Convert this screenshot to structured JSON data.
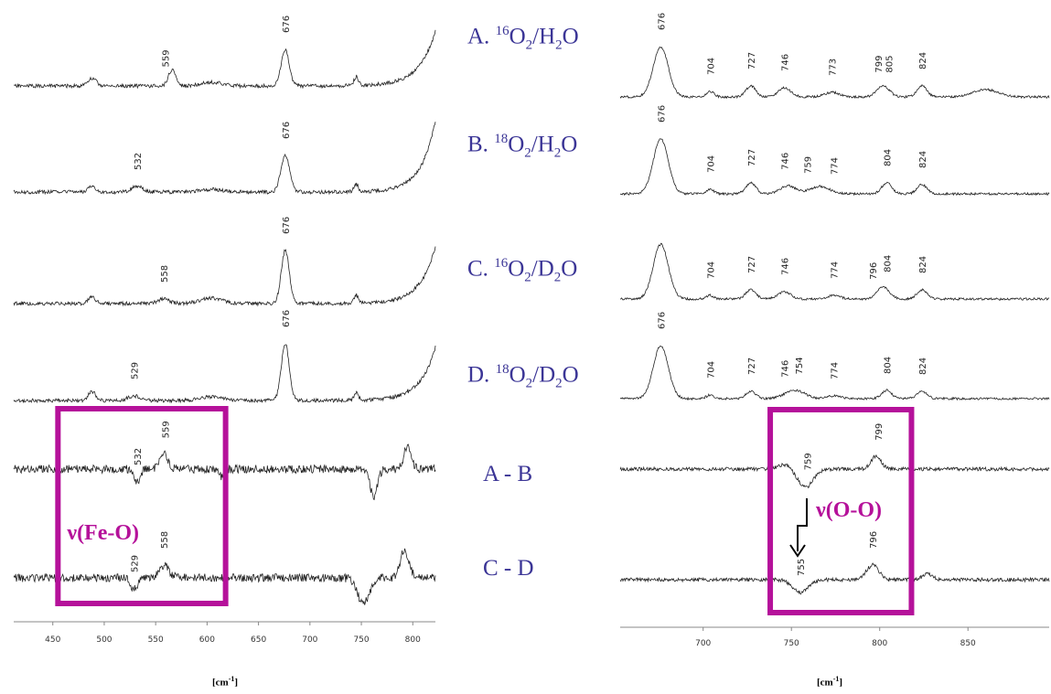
{
  "chart_data": [
    {
      "type": "line",
      "xlim": [
        412,
        822
      ],
      "x_ticks": [
        450,
        500,
        550,
        600,
        650,
        700,
        750,
        800
      ],
      "xlabel_parts": {
        "base": "[cm",
        "exp": "-1",
        "close": "]"
      },
      "series": [
        {
          "peaks": [
            {
              "x": 559,
              "label": "559"
            },
            {
              "x": 676,
              "label": "676"
            }
          ]
        },
        {
          "peaks": [
            {
              "x": 532,
              "label": "532"
            },
            {
              "x": 676,
              "label": "676"
            }
          ]
        },
        {
          "peaks": [
            {
              "x": 558,
              "label": "558"
            },
            {
              "x": 676,
              "label": "676"
            }
          ]
        },
        {
          "peaks": [
            {
              "x": 529,
              "label": "529"
            },
            {
              "x": 676,
              "label": "676"
            }
          ]
        },
        {
          "peaks": [
            {
              "x": 532,
              "label": "532"
            },
            {
              "x": 559,
              "label": "559"
            }
          ]
        },
        {
          "peaks": [
            {
              "x": 529,
              "label": "529"
            },
            {
              "x": 558,
              "label": "558"
            }
          ]
        }
      ],
      "highlight": {
        "label": "ν(Fe-O)",
        "x_range": [
          455,
          618
        ]
      }
    },
    {
      "type": "line",
      "xlim": [
        653,
        896
      ],
      "x_ticks": [
        700,
        750,
        800,
        850
      ],
      "xlabel_parts": {
        "base": "[cm",
        "exp": "-1",
        "close": "]"
      },
      "series": [
        {
          "peaks": [
            {
              "x": 676,
              "label": "676"
            },
            {
              "x": 704,
              "label": "704"
            },
            {
              "x": 727,
              "label": "727"
            },
            {
              "x": 746,
              "label": "746"
            },
            {
              "x": 773,
              "label": "773"
            },
            {
              "x": 799,
              "label": "799"
            },
            {
              "x": 805,
              "label": "805"
            },
            {
              "x": 824,
              "label": "824"
            }
          ]
        },
        {
          "peaks": [
            {
              "x": 676,
              "label": "676"
            },
            {
              "x": 704,
              "label": "704"
            },
            {
              "x": 727,
              "label": "727"
            },
            {
              "x": 746,
              "label": "746"
            },
            {
              "x": 759,
              "label": "759"
            },
            {
              "x": 774,
              "label": "774"
            },
            {
              "x": 804,
              "label": "804"
            },
            {
              "x": 824,
              "label": "824"
            }
          ]
        },
        {
          "peaks": [
            {
              "x": 704,
              "label": "704"
            },
            {
              "x": 727,
              "label": "727"
            },
            {
              "x": 746,
              "label": "746"
            },
            {
              "x": 774,
              "label": "774"
            },
            {
              "x": 796,
              "label": "796"
            },
            {
              "x": 804,
              "label": "804"
            },
            {
              "x": 824,
              "label": "824"
            }
          ]
        },
        {
          "peaks": [
            {
              "x": 676,
              "label": "676"
            },
            {
              "x": 704,
              "label": "704"
            },
            {
              "x": 727,
              "label": "727"
            },
            {
              "x": 746,
              "label": "746"
            },
            {
              "x": 754,
              "label": "754"
            },
            {
              "x": 774,
              "label": "774"
            },
            {
              "x": 804,
              "label": "804"
            },
            {
              "x": 824,
              "label": "824"
            }
          ]
        },
        {
          "peaks": [
            {
              "x": 759,
              "label": "759"
            },
            {
              "x": 799,
              "label": "799"
            }
          ]
        },
        {
          "peaks": [
            {
              "x": 755,
              "label": "755"
            },
            {
              "x": 796,
              "label": "796"
            }
          ]
        }
      ],
      "highlight": {
        "label": "ν(O-O)",
        "x_range": [
          738,
          818
        ]
      }
    }
  ],
  "spectrum_labels": [
    {
      "letter": "A. ",
      "iso": "16",
      "o": "O",
      "o_sub": "2",
      "solvent": "/H",
      "solvent_sub": "2",
      "solvent_end": "O"
    },
    {
      "letter": "B. ",
      "iso": "18",
      "o": "O",
      "o_sub": "2",
      "solvent": "/H",
      "solvent_sub": "2",
      "solvent_end": "O"
    },
    {
      "letter": "C. ",
      "iso": "16",
      "o": "O",
      "o_sub": "2",
      "solvent": "/D",
      "solvent_sub": "2",
      "solvent_end": "O"
    },
    {
      "letter": "D. ",
      "iso": "18",
      "o": "O",
      "o_sub": "2",
      "solvent": "/D",
      "solvent_sub": "2",
      "solvent_end": "O"
    }
  ],
  "difference_labels": [
    "A - B",
    "C - D"
  ],
  "colors": {
    "trace": "#222222",
    "highlight_box": "#b5119a",
    "label_text": "#3b3596"
  }
}
